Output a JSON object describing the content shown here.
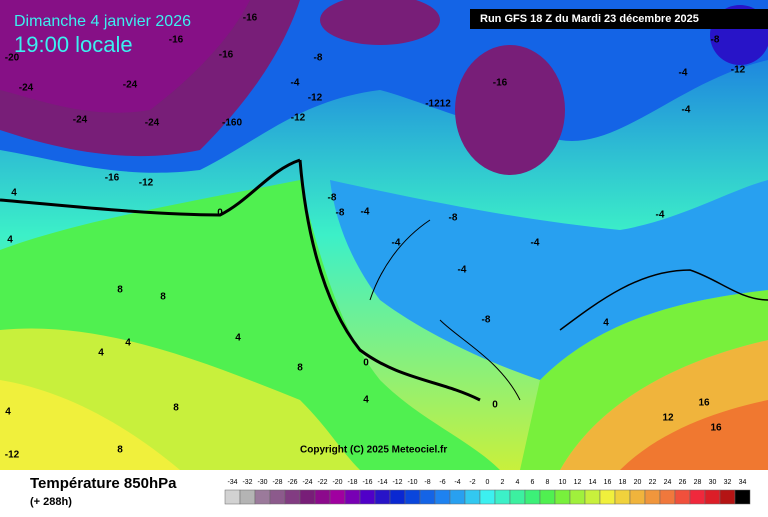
{
  "header": {
    "date": "Dimanche 4 janvier 2026",
    "time": "19:00 locale",
    "run": "Run GFS 18 Z du Mardi 23 décembre 2025"
  },
  "copyright": "Copyright (C) 2025 Meteociel.fr",
  "legend": {
    "title": "Température 850hPa",
    "subtitle": "(+ 288h)",
    "values": [
      -34,
      -32,
      -30,
      -28,
      -26,
      -24,
      -22,
      -20,
      -18,
      -16,
      -14,
      -12,
      -10,
      -8,
      -6,
      -4,
      -2,
      0,
      2,
      4,
      6,
      8,
      10,
      12,
      14,
      16,
      18,
      20,
      22,
      24,
      26,
      28,
      30,
      32,
      34
    ],
    "colors": [
      "#d2d2d2",
      "#b4b4b4",
      "#9b7a9b",
      "#8c5a8c",
      "#823c82",
      "#781e78",
      "#8c0a8c",
      "#a000a0",
      "#7800b4",
      "#5000c8",
      "#2814c8",
      "#0a28d2",
      "#0a46dc",
      "#1464e6",
      "#1e82f0",
      "#28a0f0",
      "#32c8f0",
      "#3cf0f0",
      "#3cf0c8",
      "#3cf0a0",
      "#3cf078",
      "#50f050",
      "#78f03c",
      "#a0f03c",
      "#c8f03c",
      "#f0f03c",
      "#f0d23c",
      "#f0b43c",
      "#f0963c",
      "#f0783c",
      "#f0503c",
      "#f0283c",
      "#dc1e28",
      "#b41414",
      "#000000"
    ]
  },
  "map_labels": [
    "-20",
    "-24",
    "-24",
    "-24",
    "-24",
    "-16",
    "-16",
    "-16",
    "-12",
    "-160",
    "-16",
    "-16",
    "-1212",
    "-8",
    "-4",
    "-12",
    "-12",
    "-8",
    "-8",
    "-4",
    "-8",
    "-4",
    "-4",
    "-8",
    "-4",
    "-4",
    "-4",
    "-4",
    "-8",
    "-12",
    "0",
    "4",
    "4",
    "8",
    "8",
    "4",
    "4",
    "4",
    "8",
    "8",
    "4",
    "0",
    "0",
    "4",
    "12",
    "16",
    "16",
    "-12",
    "4",
    "8"
  ]
}
